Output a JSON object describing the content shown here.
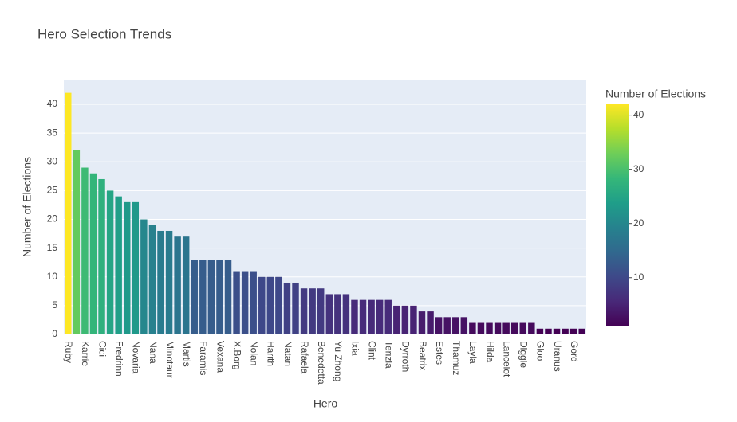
{
  "chart_data": {
    "type": "bar",
    "title": "Hero Selection Trends",
    "x_label": "Hero",
    "y_label": "Number of Elections",
    "categories": [
      "Ruby",
      null,
      "Karrie",
      null,
      "Cici",
      null,
      "Fredrinn",
      null,
      "Novaria",
      null,
      "Nana",
      null,
      "Minotaur",
      null,
      "Martis",
      null,
      "Faramis",
      null,
      "Vexana",
      null,
      "X.Borg",
      null,
      "Nolan",
      null,
      "Harith",
      null,
      "Natan",
      null,
      "Rafaela",
      null,
      "Benedetta",
      null,
      "Yu Zhong",
      null,
      "Ixia",
      null,
      "Clint",
      null,
      "Terizla",
      null,
      "Dyrroth",
      null,
      "Beatrix",
      null,
      "Estes",
      null,
      "Thamuz",
      null,
      "Layla",
      null,
      "Hilda",
      null,
      "Lancelot",
      null,
      "Diggle",
      null,
      "Gloo",
      null,
      "Uranus",
      null,
      "Gord",
      null
    ],
    "values": [
      42,
      32,
      29,
      28,
      27,
      25,
      24,
      23,
      23,
      20,
      19,
      18,
      18,
      17,
      17,
      13,
      13,
      13,
      13,
      13,
      11,
      11,
      11,
      10,
      10,
      10,
      9,
      9,
      8,
      8,
      8,
      7,
      7,
      7,
      6,
      6,
      6,
      6,
      6,
      5,
      5,
      5,
      4,
      4,
      3,
      3,
      3,
      3,
      2,
      2,
      2,
      2,
      2,
      2,
      2,
      2,
      1,
      1,
      1,
      1,
      1,
      1
    ],
    "ylim": [
      0,
      44.3
    ],
    "yticks": [
      0,
      5,
      10,
      15,
      20,
      25,
      30,
      35,
      40
    ],
    "grid": true,
    "colorscale": [
      "#440154",
      "#482878",
      "#3e4989",
      "#31688e",
      "#26828e",
      "#1f9e89",
      "#35b779",
      "#6ece58",
      "#b5de2b",
      "#fde725"
    ],
    "colorbar_title": "Number of Elections",
    "colorbar_lim": [
      1,
      42
    ],
    "colorbar_ticks": [
      10,
      20,
      30,
      40
    ]
  }
}
